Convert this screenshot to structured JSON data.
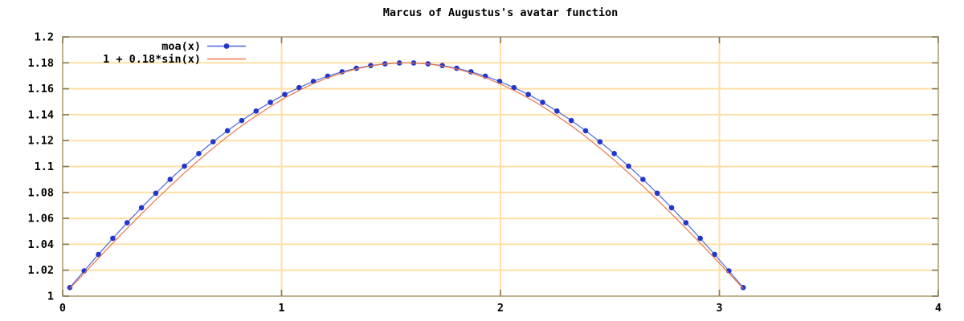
{
  "chart_data": {
    "type": "line",
    "title": "Marcus of Augustus's avatar function",
    "xlabel": "",
    "ylabel": "",
    "xlim": [
      0,
      4
    ],
    "ylim": [
      1,
      1.2
    ],
    "grid": true,
    "legend_position": "top-left-inside",
    "xticks": [
      {
        "v": 0,
        "label": "0"
      },
      {
        "v": 1,
        "label": "1"
      },
      {
        "v": 2,
        "label": "2"
      },
      {
        "v": 3,
        "label": "3"
      },
      {
        "v": 4,
        "label": "4"
      }
    ],
    "yticks": [
      {
        "v": 1.0,
        "label": "1"
      },
      {
        "v": 1.02,
        "label": "1.02"
      },
      {
        "v": 1.04,
        "label": "1.04"
      },
      {
        "v": 1.06,
        "label": "1.06"
      },
      {
        "v": 1.08,
        "label": "1.08"
      },
      {
        "v": 1.1,
        "label": "1.1"
      },
      {
        "v": 1.12,
        "label": "1.12"
      },
      {
        "v": 1.14,
        "label": "1.14"
      },
      {
        "v": 1.16,
        "label": "1.16"
      },
      {
        "v": 1.18,
        "label": "1.18"
      },
      {
        "v": 1.2,
        "label": "1.2"
      }
    ],
    "colors": {
      "grid": "#ffdfa6",
      "border": "#b1a077",
      "tick": "#857a58",
      "text": "#000000"
    },
    "series": [
      {
        "name": "moa(x)",
        "style": "linespoints",
        "point_color": "#2136cc",
        "line_color": "#4e66dc",
        "x": [
          0.0327,
          0.0982,
          0.1636,
          0.2291,
          0.2945,
          0.36,
          0.4254,
          0.4909,
          0.5563,
          0.6218,
          0.6872,
          0.7527,
          0.8181,
          0.8836,
          0.949,
          1.0145,
          1.0799,
          1.1454,
          1.2108,
          1.2763,
          1.3417,
          1.4072,
          1.4726,
          1.5381,
          1.6035,
          1.669,
          1.7344,
          1.7999,
          1.8653,
          1.9308,
          1.9962,
          2.0617,
          2.1271,
          2.1926,
          2.258,
          2.3235,
          2.3889,
          2.4544,
          2.5198,
          2.5853,
          2.6507,
          2.7162,
          2.7816,
          2.8471,
          2.9125,
          2.978,
          3.0434,
          3.1089
        ],
        "y": [
          1.0066,
          1.0195,
          1.0322,
          1.0446,
          1.0566,
          1.0682,
          1.0794,
          1.0901,
          1.1003,
          1.11,
          1.1191,
          1.1276,
          1.1355,
          1.1428,
          1.1495,
          1.1556,
          1.1609,
          1.1657,
          1.1697,
          1.1731,
          1.1758,
          1.1779,
          1.1792,
          1.1799,
          1.1799,
          1.1792,
          1.1779,
          1.1758,
          1.1731,
          1.1697,
          1.1657,
          1.1609,
          1.1556,
          1.1495,
          1.1428,
          1.1355,
          1.1276,
          1.1191,
          1.11,
          1.1003,
          1.0901,
          1.0794,
          1.0682,
          1.0566,
          1.0446,
          1.0322,
          1.0195,
          1.0066
        ]
      },
      {
        "name": "1 + 0.18*sin(x)",
        "style": "line",
        "line_color": "#e8784e",
        "x": [
          0.0327,
          0.0982,
          0.1636,
          0.2291,
          0.2945,
          0.36,
          0.4254,
          0.4909,
          0.5563,
          0.6218,
          0.6872,
          0.7527,
          0.8181,
          0.8836,
          0.949,
          1.0145,
          1.0799,
          1.1454,
          1.2108,
          1.2763,
          1.3417,
          1.4072,
          1.4726,
          1.5381,
          1.6035,
          1.669,
          1.7344,
          1.7999,
          1.8653,
          1.9308,
          1.9962,
          2.0617,
          2.1271,
          2.1926,
          2.258,
          2.3235,
          2.3889,
          2.4544,
          2.5198,
          2.5853,
          2.6507,
          2.7162,
          2.7816,
          2.8471,
          2.9125,
          2.978,
          3.0434,
          3.1089
        ],
        "y": [
          1.0059,
          1.0176,
          1.0293,
          1.0409,
          1.0523,
          1.0634,
          1.0743,
          1.0849,
          1.095,
          1.1049,
          1.1142,
          1.1231,
          1.1314,
          1.1391,
          1.1463,
          1.1529,
          1.1587,
          1.164,
          1.1685,
          1.1722,
          1.1753,
          1.1776,
          1.1791,
          1.1799,
          1.1799,
          1.1791,
          1.1776,
          1.1753,
          1.1722,
          1.1685,
          1.164,
          1.1587,
          1.1529,
          1.1463,
          1.1391,
          1.1314,
          1.1231,
          1.1142,
          1.1049,
          1.095,
          1.0849,
          1.0743,
          1.0634,
          1.0523,
          1.0409,
          1.0293,
          1.0176,
          1.0059
        ]
      }
    ]
  }
}
